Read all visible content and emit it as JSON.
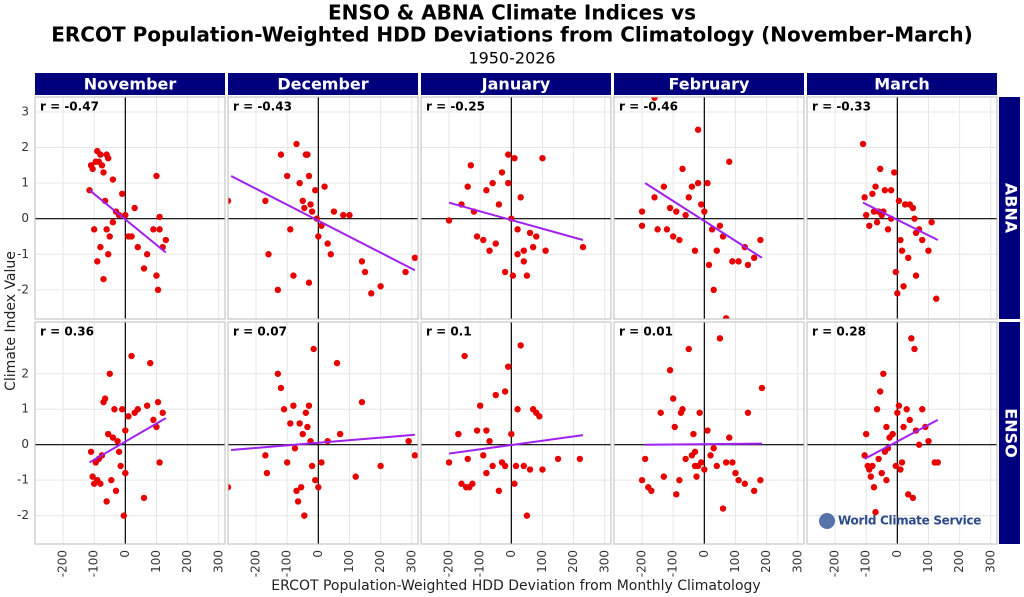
{
  "title_lines": [
    "ENSO & ABNA Climate Indices vs",
    "ERCOT Population-Weighted HDD Deviations from Climatology (November-March)"
  ],
  "subtitle": "1950-2026",
  "x_label": "ERCOT Population-Weighted HDD Deviation from Monthly Climatology",
  "y_label": "Climate Index Value",
  "columns": [
    "November",
    "December",
    "January",
    "February",
    "March"
  ],
  "rows": [
    "ABNA",
    "ENSO"
  ],
  "watermark": "World Climate Service",
  "chart_data": [
    {
      "type": "scatter",
      "annotation": "r = -0.47",
      "color": "#e60000",
      "xlim": [
        -290,
        320
      ],
      "xticks": [
        -200,
        -100,
        0,
        100,
        200,
        300
      ],
      "ylim": [
        -2.82,
        3.42
      ],
      "yticks": [
        -2,
        -1,
        0,
        1,
        2,
        3
      ],
      "x": [
        -115,
        -110,
        -105,
        -95,
        -90,
        -85,
        -80,
        -75,
        -70,
        -60,
        -55,
        -40,
        -100,
        -90,
        -80,
        -70,
        -60,
        -50,
        -40,
        -30,
        -20,
        -10,
        0,
        10,
        20,
        30,
        40,
        60,
        70,
        90,
        100,
        100,
        105,
        110,
        120,
        130,
        110,
        -65,
        -55
      ],
      "values": [
        0.8,
        1.5,
        1.4,
        1.6,
        1.9,
        1.6,
        1.8,
        1.5,
        1.3,
        1.8,
        1.7,
        1.1,
        -0.3,
        -1.2,
        -0.8,
        -1.7,
        -0.3,
        -0.5,
        -0.1,
        0.2,
        0.1,
        0.7,
        0.1,
        -0.5,
        -0.5,
        0.3,
        -0.8,
        -1.4,
        -1.0,
        -0.3,
        1.2,
        -1.6,
        -2.0,
        -0.3,
        -0.8,
        -0.6,
        0.05,
        0.5,
        -1.0
      ],
      "trend": {
        "color": "#a020f0",
        "x": [
          -115,
          130
        ],
        "values": [
          0.8,
          -0.95
        ]
      }
    },
    {
      "type": "scatter",
      "annotation": "r = -0.43",
      "color": "#e60000",
      "xlim": [
        -290,
        320
      ],
      "xticks": [
        -200,
        -100,
        0,
        100,
        200,
        300
      ],
      "ylim": [
        -2.82,
        3.42
      ],
      "yticks": [
        -2,
        -1,
        0,
        1,
        2,
        3
      ],
      "x": [
        -290,
        -170,
        -160,
        -130,
        -120,
        -100,
        -90,
        -80,
        -70,
        -60,
        -50,
        -45,
        -40,
        -35,
        -30,
        -25,
        -20,
        -10,
        -5,
        0,
        10,
        20,
        30,
        40,
        50,
        80,
        100,
        140,
        150,
        170,
        200,
        280,
        310,
        -30
      ],
      "values": [
        0.5,
        0.5,
        -1.0,
        -2.0,
        1.8,
        1.2,
        -0.3,
        -1.6,
        2.1,
        1.0,
        0.5,
        0.3,
        1.8,
        1.8,
        1.2,
        0.4,
        0.2,
        0.8,
        0.0,
        -0.5,
        -0.2,
        0.9,
        -0.7,
        -1.0,
        0.2,
        0.1,
        0.1,
        -1.2,
        -1.5,
        -2.1,
        -1.9,
        -1.5,
        -1.1,
        -1.8
      ],
      "trend": {
        "color": "#a020f0",
        "x": [
          -280,
          310
        ],
        "values": [
          1.2,
          -1.45
        ]
      }
    },
    {
      "type": "scatter",
      "annotation": "r = -0.25",
      "color": "#e60000",
      "xlim": [
        -290,
        320
      ],
      "xticks": [
        -200,
        -100,
        0,
        100,
        200,
        300
      ],
      "ylim": [
        -2.82,
        3.42
      ],
      "yticks": [
        -2,
        -1,
        0,
        1,
        2,
        3
      ],
      "x": [
        -200,
        -160,
        -140,
        -130,
        -120,
        -110,
        -90,
        -80,
        -70,
        -60,
        -50,
        -40,
        -30,
        -20,
        -10,
        0,
        5,
        10,
        20,
        30,
        40,
        50,
        60,
        70,
        80,
        100,
        110,
        40,
        20,
        230,
        -10
      ],
      "values": [
        -0.05,
        0.4,
        0.9,
        1.5,
        0.2,
        -0.5,
        -0.6,
        0.8,
        -0.9,
        1.0,
        -0.7,
        0.4,
        1.3,
        -1.5,
        1.8,
        0.0,
        -1.6,
        1.7,
        -0.3,
        0.6,
        -0.9,
        -1.6,
        -0.4,
        -0.8,
        -0.5,
        1.7,
        -0.9,
        -1.2,
        -1.0,
        -0.8,
        1.0
      ],
      "trend": {
        "color": "#a020f0",
        "x": [
          -200,
          230
        ],
        "values": [
          0.45,
          -0.6
        ]
      }
    },
    {
      "type": "scatter",
      "annotation": "r = -0.46",
      "color": "#e60000",
      "xlim": [
        -290,
        320
      ],
      "xticks": [
        -200,
        -100,
        0,
        100,
        200,
        300
      ],
      "ylim": [
        -2.82,
        3.42
      ],
      "yticks": [
        -2,
        -1,
        0,
        1,
        2,
        3
      ],
      "x": [
        -200,
        -200,
        -160,
        -160,
        -150,
        -130,
        -120,
        -110,
        -100,
        -90,
        -80,
        -70,
        -60,
        -50,
        -40,
        -30,
        -20,
        -10,
        0,
        10,
        15,
        25,
        30,
        40,
        50,
        60,
        70,
        80,
        90,
        110,
        130,
        140,
        160,
        180,
        -20
      ],
      "values": [
        0.2,
        -0.2,
        3.4,
        0.6,
        -0.3,
        0.9,
        -0.3,
        0.3,
        -0.5,
        0.2,
        -0.6,
        1.4,
        0.1,
        0.6,
        0.9,
        -0.9,
        1.0,
        0.4,
        0.2,
        1.0,
        -1.3,
        -0.3,
        -2.0,
        -0.9,
        -0.2,
        -0.5,
        -2.8,
        1.6,
        -1.2,
        -1.2,
        -0.8,
        -1.3,
        -1.1,
        -0.6,
        2.5
      ],
      "trend": {
        "color": "#a020f0",
        "x": [
          -190,
          185
        ],
        "values": [
          1.0,
          -1.1
        ]
      }
    },
    {
      "type": "scatter",
      "annotation": "r = -0.33",
      "color": "#e60000",
      "xlim": [
        -290,
        320
      ],
      "xticks": [
        -200,
        -100,
        0,
        100,
        200,
        300
      ],
      "ylim": [
        -2.82,
        3.42
      ],
      "yticks": [
        -2,
        -1,
        0,
        1,
        2,
        3
      ],
      "x": [
        -110,
        -105,
        -100,
        -90,
        -80,
        -75,
        -70,
        -65,
        -60,
        -55,
        -50,
        -45,
        -40,
        -30,
        -20,
        -10,
        -5,
        0,
        5,
        10,
        15,
        20,
        25,
        35,
        40,
        50,
        55,
        60,
        70,
        80,
        100,
        110,
        125,
        60,
        -20
      ],
      "values": [
        2.1,
        0.6,
        0.1,
        -0.2,
        0.7,
        0.2,
        0.9,
        -0.1,
        0.2,
        1.4,
        0.1,
        0.2,
        0.8,
        -0.3,
        0.0,
        1.3,
        -1.5,
        -2.1,
        0.5,
        -0.6,
        -0.9,
        -1.9,
        0.4,
        -1.1,
        0.4,
        0.3,
        0.0,
        -0.4,
        -0.3,
        -0.6,
        -0.9,
        -0.1,
        -2.25,
        -1.6,
        0.8
      ],
      "trend": {
        "color": "#a020f0",
        "x": [
          -110,
          130
        ],
        "values": [
          0.45,
          -0.6
        ]
      }
    },
    {
      "type": "scatter",
      "annotation": "r = 0.36",
      "color": "#e60000",
      "xlim": [
        -290,
        320
      ],
      "xticks": [
        -200,
        -100,
        0,
        100,
        200,
        300
      ],
      "ylim": [
        -2.8,
        3.46
      ],
      "yticks": [
        -2,
        -1,
        0,
        1,
        2
      ],
      "x": [
        -110,
        -105,
        -100,
        -95,
        -90,
        -80,
        -75,
        -70,
        -65,
        -60,
        -55,
        -50,
        -45,
        -40,
        -35,
        -30,
        -25,
        -20,
        -15,
        -10,
        -5,
        0,
        10,
        20,
        30,
        40,
        60,
        70,
        80,
        90,
        100,
        105,
        110,
        120,
        -85,
        0
      ],
      "values": [
        -0.2,
        -0.9,
        -1.1,
        -0.5,
        -1.0,
        -1.1,
        -0.3,
        1.2,
        1.3,
        -1.6,
        0.3,
        2.0,
        -1.0,
        0.2,
        1.0,
        -1.3,
        0.1,
        -0.2,
        -0.6,
        1.0,
        -2.0,
        0.4,
        0.8,
        2.5,
        0.9,
        1.0,
        -1.5,
        1.1,
        2.3,
        0.7,
        0.5,
        1.2,
        -0.5,
        0.9,
        -0.4,
        -0.8
      ],
      "trend": {
        "color": "#a020f0",
        "x": [
          -115,
          130
        ],
        "values": [
          -0.5,
          0.75
        ]
      }
    },
    {
      "type": "scatter",
      "annotation": "r = 0.07",
      "color": "#e60000",
      "xlim": [
        -290,
        320
      ],
      "xticks": [
        -200,
        -100,
        0,
        100,
        200,
        300
      ],
      "ylim": [
        -2.8,
        3.46
      ],
      "yticks": [
        -2,
        -1,
        0,
        1,
        2
      ],
      "x": [
        -290,
        -170,
        -165,
        -130,
        -120,
        -110,
        -100,
        -90,
        -80,
        -75,
        -70,
        -65,
        -60,
        -55,
        -50,
        -45,
        -40,
        -35,
        -30,
        -25,
        -20,
        -15,
        -10,
        0,
        10,
        30,
        60,
        70,
        120,
        140,
        200,
        290,
        310
      ],
      "values": [
        -1.2,
        -0.3,
        -0.8,
        2.0,
        1.6,
        1.0,
        -0.5,
        0.6,
        1.1,
        -0.1,
        -1.3,
        -1.6,
        0.6,
        -1.2,
        0.3,
        -2.0,
        0.9,
        0.5,
        1.1,
        0.1,
        -0.6,
        2.7,
        -1.0,
        -1.2,
        -0.5,
        0.1,
        2.3,
        0.3,
        -0.9,
        1.2,
        -0.6,
        0.1,
        -0.3
      ],
      "trend": {
        "color": "#a020f0",
        "x": [
          -280,
          310
        ],
        "values": [
          -0.15,
          0.28
        ]
      }
    },
    {
      "type": "scatter",
      "annotation": "r = 0.1",
      "color": "#e60000",
      "xlim": [
        -290,
        320
      ],
      "xticks": [
        -200,
        -100,
        0,
        100,
        200,
        300
      ],
      "ylim": [
        -2.8,
        3.46
      ],
      "yticks": [
        -2,
        -1,
        0,
        1,
        2
      ],
      "x": [
        -200,
        -170,
        -160,
        -150,
        -145,
        -140,
        -135,
        -125,
        -110,
        -100,
        -90,
        -80,
        -70,
        -60,
        -50,
        -40,
        -30,
        -20,
        -10,
        0,
        10,
        15,
        20,
        30,
        40,
        50,
        60,
        70,
        80,
        90,
        100,
        150,
        220,
        -20,
        -80
      ],
      "values": [
        -0.5,
        0.3,
        -1.1,
        2.5,
        -1.2,
        -0.4,
        -1.2,
        -1.1,
        0.4,
        1.1,
        -0.3,
        -0.8,
        0.1,
        -0.6,
        1.4,
        -1.3,
        -0.5,
        1.5,
        2.2,
        0.3,
        -1.1,
        -0.6,
        1.0,
        2.8,
        -0.6,
        -2.0,
        -0.7,
        1.0,
        0.9,
        0.8,
        -0.7,
        -0.4,
        -0.4,
        -0.6,
        0.4
      ],
      "trend": {
        "color": "#a020f0",
        "x": [
          -200,
          230
        ],
        "values": [
          -0.25,
          0.27
        ]
      }
    },
    {
      "type": "scatter",
      "annotation": "r = 0.01",
      "color": "#e60000",
      "xlim": [
        -290,
        320
      ],
      "xticks": [
        -200,
        -100,
        0,
        100,
        200,
        300
      ],
      "ylim": [
        -2.8,
        3.46
      ],
      "yticks": [
        -2,
        -1,
        0,
        1,
        2
      ],
      "x": [
        -200,
        -190,
        -180,
        -170,
        -140,
        -130,
        -110,
        -100,
        -95,
        -90,
        -80,
        -75,
        -70,
        -60,
        -50,
        -40,
        -35,
        -30,
        -25,
        -20,
        -15,
        -10,
        0,
        10,
        20,
        30,
        40,
        50,
        60,
        70,
        80,
        90,
        100,
        110,
        130,
        140,
        160,
        180,
        185,
        -30
      ],
      "values": [
        -1.0,
        -0.4,
        -1.2,
        -1.3,
        0.9,
        -0.9,
        2.1,
        1.3,
        0.5,
        -1.4,
        -1.0,
        0.9,
        1.0,
        -0.4,
        2.7,
        -0.3,
        0.3,
        -0.2,
        -0.9,
        -0.6,
        0.9,
        -0.5,
        -0.7,
        0.4,
        -0.3,
        -0.1,
        -0.6,
        3.0,
        -1.8,
        -0.5,
        0.2,
        -0.5,
        -0.8,
        -1.0,
        -1.1,
        0.9,
        -1.3,
        -1.0,
        1.6,
        -0.6
      ],
      "trend": {
        "color": "#a020f0",
        "x": [
          -190,
          185
        ],
        "values": [
          0.0,
          0.03
        ]
      }
    },
    {
      "type": "scatter",
      "annotation": "r = 0.28",
      "color": "#e60000",
      "xlim": [
        -290,
        320
      ],
      "xticks": [
        -200,
        -100,
        0,
        100,
        200,
        300
      ],
      "ylim": [
        -2.8,
        3.46
      ],
      "yticks": [
        -2,
        -1,
        0,
        1,
        2
      ],
      "x": [
        -105,
        -100,
        -95,
        -90,
        -85,
        -80,
        -75,
        -70,
        -65,
        -60,
        -55,
        -50,
        -45,
        -40,
        -35,
        -30,
        -25,
        -15,
        -5,
        0,
        5,
        10,
        15,
        20,
        30,
        35,
        40,
        45,
        50,
        55,
        60,
        70,
        80,
        90,
        100,
        120,
        130,
        -35
      ],
      "values": [
        -0.3,
        0.3,
        -0.6,
        -0.7,
        -0.9,
        -0.6,
        -1.2,
        -1.9,
        1.0,
        -0.4,
        1.5,
        -0.8,
        2.0,
        -0.2,
        0.5,
        -0.1,
        0.2,
        0.3,
        -0.6,
        0.9,
        1.1,
        -0.7,
        -0.5,
        0.5,
        1.0,
        -1.4,
        0.7,
        3.0,
        -1.5,
        2.7,
        0.4,
        0.0,
        1.0,
        0.5,
        0.1,
        -0.5,
        -0.5,
        -1.0
      ],
      "trend": {
        "color": "#a020f0",
        "x": [
          -105,
          130
        ],
        "values": [
          -0.4,
          0.7
        ]
      }
    }
  ]
}
